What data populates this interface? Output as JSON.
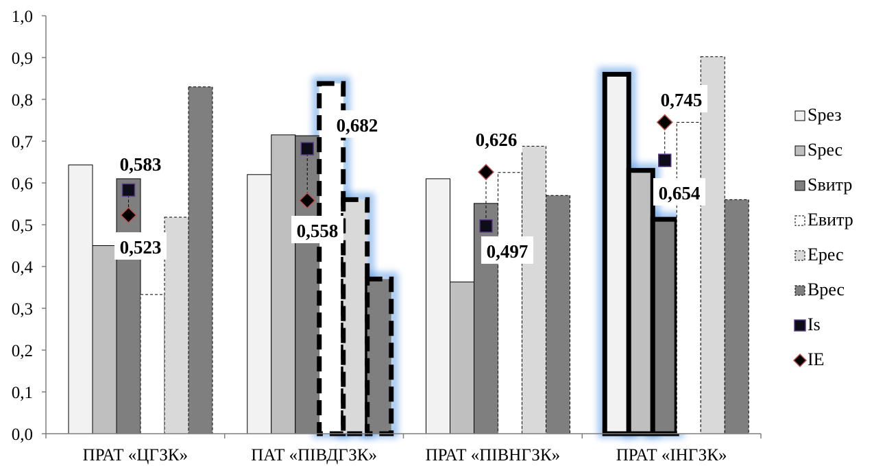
{
  "chart_data": {
    "type": "bar",
    "title": "",
    "xlabel": "",
    "ylabel": "",
    "ylim": [
      0,
      1.0
    ],
    "yticks": [
      "0,0",
      "0,1",
      "0,2",
      "0,3",
      "0,4",
      "0,5",
      "0,6",
      "0,7",
      "0,8",
      "0,9",
      "1,0"
    ],
    "legend_position": "right",
    "grid": false,
    "categories": [
      "ПРАТ «ЦГЗК»",
      "ПАТ «ПІВДГЗК»",
      "ПРАТ «ПІВНГЗК»",
      "ПРАТ «ІНГЗК»"
    ],
    "series": [
      {
        "name": "Sрез",
        "kind": "bar",
        "fill": "#f2f2f2",
        "values": [
          0.643,
          0.62,
          0.61,
          0.86
        ]
      },
      {
        "name": "Sрес",
        "kind": "bar",
        "fill": "#bfbfbf",
        "values": [
          0.45,
          0.715,
          0.363,
          0.63
        ]
      },
      {
        "name": "Sвитр",
        "kind": "bar",
        "fill": "#7f7f7f",
        "values": [
          0.61,
          0.713,
          0.551,
          0.513
        ]
      },
      {
        "name": "Eвитр",
        "kind": "bar",
        "fill": "#ffffff",
        "dashed": true,
        "values": [
          0.333,
          0.838,
          0.625,
          0.745
        ]
      },
      {
        "name": "Eрес",
        "kind": "bar",
        "fill": "#d9d9d9",
        "dashed": true,
        "values": [
          0.518,
          0.56,
          0.688,
          0.902
        ]
      },
      {
        "name": "Bрес",
        "kind": "bar",
        "fill": "#7f7f7f",
        "dashed": true,
        "values": [
          0.83,
          0.37,
          0.57,
          0.56
        ]
      },
      {
        "name": "Is",
        "kind": "marker",
        "marker": "square",
        "fill": "#0d0d1a",
        "values": [
          0.583,
          0.682,
          0.497,
          0.654
        ]
      },
      {
        "name": "IE",
        "kind": "marker",
        "marker": "diamond",
        "fill": "#000000",
        "values": [
          0.523,
          0.558,
          0.626,
          0.745
        ]
      }
    ],
    "data_labels": [
      {
        "text": "0,583"
      },
      {
        "text": "0,523"
      },
      {
        "text": "0,682"
      },
      {
        "text": "0,558"
      },
      {
        "text": "0,626"
      },
      {
        "text": "0,497"
      },
      {
        "text": "0,745"
      },
      {
        "text": "0,654"
      }
    ]
  }
}
